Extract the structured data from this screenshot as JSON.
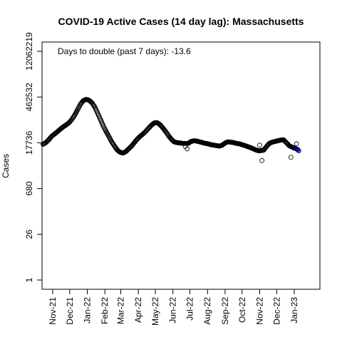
{
  "chart_data": {
    "type": "scatter",
    "title": "COVID-19 Active Cases (14 day lag): Massachusetts",
    "xlabel": "",
    "ylabel": "Cases",
    "annotation": "Days to double (past 7 days): -13.6",
    "y_scale": "log",
    "y_ticks": [
      1,
      26,
      680,
      17736,
      462532,
      12062219
    ],
    "ylim": [
      1,
      12062219
    ],
    "x_ticks": [
      "2021-11-01",
      "2021-12-01",
      "2022-01-01",
      "2022-02-01",
      "2022-03-01",
      "2022-04-01",
      "2022-05-01",
      "2022-06-01",
      "2022-07-01",
      "2022-08-01",
      "2022-09-01",
      "2022-10-01",
      "2022-11-01",
      "2022-12-01",
      "2023-01-01"
    ],
    "x_tick_labels": [
      "Nov-21",
      "Dec-21",
      "Jan-22",
      "Feb-22",
      "Mar-22",
      "Apr-22",
      "May-22",
      "Jun-22",
      "Jul-22",
      "Aug-22",
      "Sep-22",
      "Oct-22",
      "Nov-22",
      "Dec-22",
      "Jan-23"
    ],
    "xlim": [
      "2021-10-14",
      "2023-02-13"
    ],
    "grid": false,
    "series": [
      {
        "marker": "open-circle",
        "highlight_color": "#00008b",
        "points": [
          [
            "2021-10-15",
            16000
          ],
          [
            "2021-10-20",
            18000
          ],
          [
            "2021-10-25",
            22000
          ],
          [
            "2021-10-30",
            28000
          ],
          [
            "2021-11-05",
            34000
          ],
          [
            "2021-11-10",
            40000
          ],
          [
            "2021-11-15",
            48000
          ],
          [
            "2021-11-20",
            56000
          ],
          [
            "2021-11-25",
            64000
          ],
          [
            "2021-11-30",
            75000
          ],
          [
            "2021-12-05",
            95000
          ],
          [
            "2021-12-10",
            130000
          ],
          [
            "2021-12-15",
            190000
          ],
          [
            "2021-12-20",
            280000
          ],
          [
            "2021-12-25",
            360000
          ],
          [
            "2021-12-30",
            390000
          ],
          [
            "2022-01-04",
            370000
          ],
          [
            "2022-01-09",
            310000
          ],
          [
            "2022-01-14",
            230000
          ],
          [
            "2022-01-19",
            150000
          ],
          [
            "2022-01-24",
            95000
          ],
          [
            "2022-01-29",
            60000
          ],
          [
            "2022-02-03",
            40000
          ],
          [
            "2022-02-08",
            28000
          ],
          [
            "2022-02-13",
            19000
          ],
          [
            "2022-02-18",
            14000
          ],
          [
            "2022-02-23",
            10500
          ],
          [
            "2022-02-28",
            9000
          ],
          [
            "2022-03-05",
            8500
          ],
          [
            "2022-03-10",
            9500
          ],
          [
            "2022-03-15",
            11500
          ],
          [
            "2022-03-20",
            14000
          ],
          [
            "2022-03-25",
            18000
          ],
          [
            "2022-03-30",
            23000
          ],
          [
            "2022-04-04",
            28000
          ],
          [
            "2022-04-09",
            33000
          ],
          [
            "2022-04-14",
            40000
          ],
          [
            "2022-04-19",
            50000
          ],
          [
            "2022-04-24",
            62000
          ],
          [
            "2022-04-29",
            73000
          ],
          [
            "2022-05-04",
            75000
          ],
          [
            "2022-05-09",
            65000
          ],
          [
            "2022-05-14",
            52000
          ],
          [
            "2022-05-19",
            40000
          ],
          [
            "2022-05-24",
            30000
          ],
          [
            "2022-05-29",
            23000
          ],
          [
            "2022-06-03",
            19000
          ],
          [
            "2022-06-08",
            18000
          ],
          [
            "2022-06-13",
            17500
          ],
          [
            "2022-06-18",
            17000
          ],
          [
            "2022-06-23",
            13500
          ],
          [
            "2022-06-26",
            11500
          ],
          [
            "2022-06-28",
            17000
          ],
          [
            "2022-07-03",
            19500
          ],
          [
            "2022-07-08",
            20500
          ],
          [
            "2022-07-13",
            20000
          ],
          [
            "2022-07-18",
            19000
          ],
          [
            "2022-07-23",
            18000
          ],
          [
            "2022-07-28",
            17000
          ],
          [
            "2022-08-02",
            16500
          ],
          [
            "2022-08-07",
            15500
          ],
          [
            "2022-08-12",
            15000
          ],
          [
            "2022-08-17",
            14500
          ],
          [
            "2022-08-22",
            14000
          ],
          [
            "2022-08-27",
            15000
          ],
          [
            "2022-09-01",
            17500
          ],
          [
            "2022-09-06",
            19000
          ],
          [
            "2022-09-11",
            18500
          ],
          [
            "2022-09-16",
            18000
          ],
          [
            "2022-09-21",
            17000
          ],
          [
            "2022-09-26",
            16500
          ],
          [
            "2022-10-01",
            15500
          ],
          [
            "2022-10-06",
            14500
          ],
          [
            "2022-10-11",
            13500
          ],
          [
            "2022-10-16",
            12500
          ],
          [
            "2022-10-21",
            11500
          ],
          [
            "2022-10-26",
            10500
          ],
          [
            "2022-10-31",
            10000
          ],
          [
            "2022-11-01",
            15000
          ],
          [
            "2022-11-05",
            5000
          ],
          [
            "2022-11-08",
            10500
          ],
          [
            "2022-11-13",
            13500
          ],
          [
            "2022-11-18",
            17000
          ],
          [
            "2022-11-23",
            18500
          ],
          [
            "2022-11-28",
            19500
          ],
          [
            "2022-12-03",
            20500
          ],
          [
            "2022-12-08",
            21500
          ],
          [
            "2022-12-13",
            22000
          ],
          [
            "2022-12-18",
            18000
          ],
          [
            "2022-12-23",
            14500
          ],
          [
            "2022-12-26",
            6300
          ],
          [
            "2022-12-28",
            13000
          ],
          [
            "2023-01-02",
            12000
          ],
          [
            "2023-01-05",
            16500
          ],
          [
            "2023-01-07",
            11000
          ],
          [
            "2023-01-09",
            10000
          ]
        ]
      }
    ]
  }
}
